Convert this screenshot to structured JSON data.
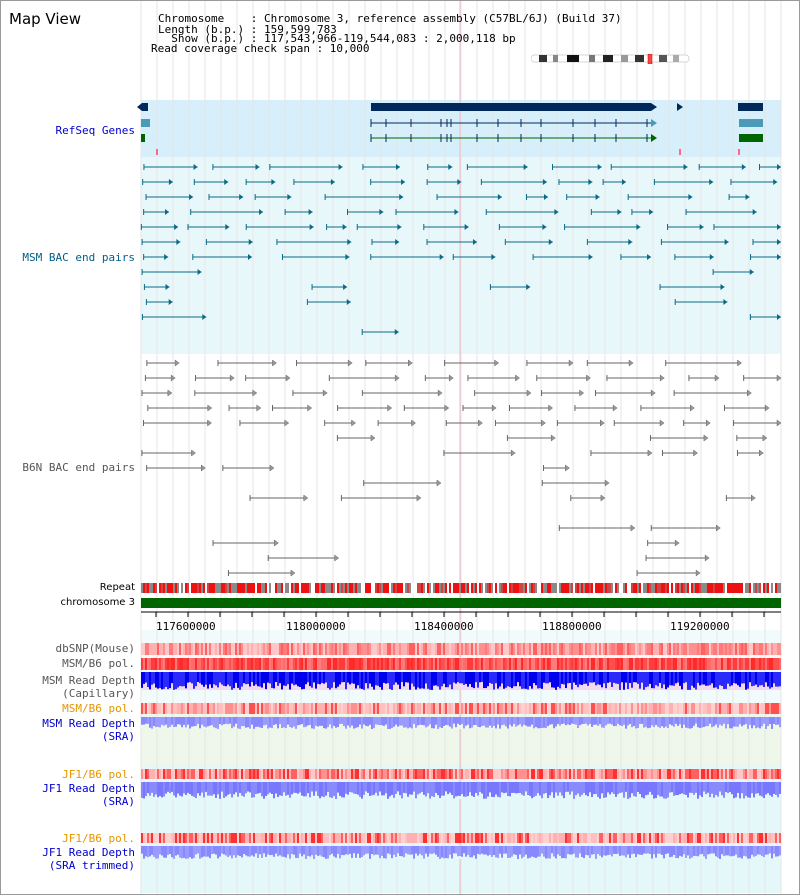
{
  "header": {
    "title": "Map View",
    "chromosome_line": "Chromosome    : Chromosome 3, reference assembly (C57BL/6J) (Build 37)",
    "length_line": "Length (b.p.) : 159,599,783",
    "show_line": "  Show (b.p.) : 117,543,966-119,544,083 : 2,000,118 bp",
    "coverage_line": "Read coverage check span : 10,000"
  },
  "tracks": {
    "refseq": "RefSeq Genes",
    "msm_bac": "MSM BAC end pairs",
    "b6n_bac": "B6N BAC end pairs",
    "repeat": "Repeat",
    "chromosome": "chromosome 3",
    "dbsnp": "dbSNP(Mouse)",
    "msm_b6_pol_1": "MSM/B6 pol.",
    "msm_depth_cap_1": "MSM Read Depth",
    "msm_depth_cap_2": "(Capillary)",
    "msm_b6_pol_2": "MSM/B6 pol.",
    "msm_depth_sra_1": "MSM Read Depth",
    "msm_depth_sra_2": "(SRA)",
    "jf1_b6_pol_1": "JF1/B6 pol.",
    "jf1_depth_sra_1": "JF1 Read Depth",
    "jf1_depth_sra_2": "(SRA)",
    "jf1_b6_pol_2": "JF1/B6 pol.",
    "jf1_depth_trim_1": "JF1 Read Depth",
    "jf1_depth_trim_2": "(SRA trimmed)"
  },
  "axis": {
    "ticks": [
      "117600000",
      "118000000",
      "118400000",
      "118800000",
      "119200000"
    ]
  },
  "colors": {
    "refseq_label": "#0000cc",
    "msm_label": "#005f87",
    "b6n_label": "#555555",
    "orange_label": "#e69500",
    "blue_label": "#0000cc",
    "chromosome_bar": "#006400",
    "repeat_red": "#ee1111"
  }
}
